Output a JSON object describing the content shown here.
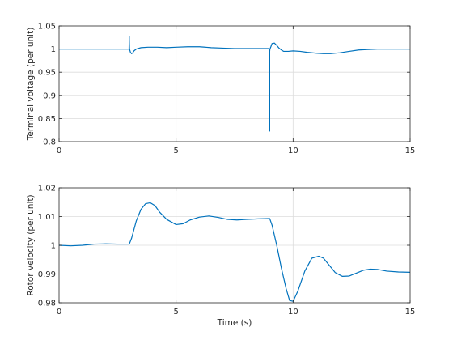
{
  "chart_data": [
    {
      "type": "line",
      "title": "",
      "xlabel": "",
      "ylabel": "Terminal voltage (per unit)",
      "xlim": [
        0,
        15
      ],
      "ylim": [
        0.8,
        1.05
      ],
      "xticks": [
        0,
        5,
        10,
        15
      ],
      "yticks": [
        0.8,
        0.85,
        0.9,
        0.95,
        1,
        1.05
      ],
      "xtick_labels": [
        "0",
        "5",
        "10",
        "15"
      ],
      "ytick_labels": [
        "0.8",
        "0.85",
        "0.9",
        "0.95",
        "1",
        "1.05"
      ],
      "grid": true,
      "color": "#0072BD",
      "series": [
        {
          "x": [
            0,
            2.99,
            3.0,
            3.0,
            3.01,
            3.05,
            3.1,
            3.15,
            3.2,
            3.3,
            3.5,
            3.8,
            4.2,
            4.6,
            5.0,
            5.5,
            6.0,
            6.5,
            7.0,
            7.5,
            8.0,
            8.5,
            8.95,
            8.99,
            9.0,
            9.0,
            9.01,
            9.05,
            9.1,
            9.2,
            9.3,
            9.4,
            9.5,
            9.6,
            9.8,
            10.0,
            10.3,
            10.6,
            11.0,
            11.3,
            11.6,
            12.0,
            12.4,
            12.8,
            13.2,
            13.6,
            14.0,
            14.5,
            15.0
          ],
          "y": [
            1.0,
            1.0,
            1.027,
            1.02,
            1.0,
            0.993,
            0.99,
            0.992,
            0.996,
            1.0,
            1.003,
            1.004,
            1.004,
            1.003,
            1.004,
            1.005,
            1.005,
            1.003,
            1.002,
            1.001,
            1.001,
            1.001,
            1.001,
            1.0,
            0.823,
            0.995,
            1.0,
            1.005,
            1.012,
            1.013,
            1.008,
            1.002,
            0.998,
            0.995,
            0.995,
            0.996,
            0.995,
            0.993,
            0.991,
            0.99,
            0.99,
            0.992,
            0.995,
            0.998,
            0.999,
            1.0,
            1.0,
            1.0,
            1.0
          ]
        }
      ]
    },
    {
      "type": "line",
      "title": "",
      "xlabel": "Time (s)",
      "ylabel": "Rotor velocity (per unit)",
      "xlim": [
        0,
        15
      ],
      "ylim": [
        0.98,
        1.02
      ],
      "xticks": [
        0,
        5,
        10,
        15
      ],
      "yticks": [
        0.98,
        0.99,
        1.0,
        1.01,
        1.02
      ],
      "xtick_labels": [
        "0",
        "5",
        "10",
        "15"
      ],
      "ytick_labels": [
        "0.98",
        "0.99",
        "1",
        "1.01",
        "1.02"
      ],
      "grid": true,
      "color": "#0072BD",
      "series": [
        {
          "x": [
            0,
            0.5,
            1.0,
            1.5,
            2.0,
            2.5,
            3.0,
            3.1,
            3.3,
            3.5,
            3.7,
            3.9,
            4.1,
            4.3,
            4.6,
            5.0,
            5.3,
            5.6,
            6.0,
            6.4,
            6.8,
            7.2,
            7.6,
            8.0,
            8.5,
            9.0,
            9.1,
            9.3,
            9.5,
            9.7,
            9.85,
            10.0,
            10.2,
            10.5,
            10.8,
            11.1,
            11.3,
            11.5,
            11.8,
            12.1,
            12.4,
            12.7,
            13.0,
            13.3,
            13.6,
            14.0,
            14.5,
            15.0
          ],
          "y": [
            1.0,
            0.9998,
            1.0,
            1.0004,
            1.0005,
            1.0004,
            1.0004,
            1.0025,
            1.0085,
            1.0125,
            1.0145,
            1.0148,
            1.0138,
            1.0115,
            1.009,
            1.0072,
            1.0075,
            1.0088,
            1.0098,
            1.0102,
            1.0097,
            1.009,
            1.0088,
            1.009,
            1.0092,
            1.0093,
            1.007,
            1.0,
            0.992,
            0.985,
            0.9808,
            0.9805,
            0.984,
            0.991,
            0.9955,
            0.9962,
            0.9955,
            0.9935,
            0.9905,
            0.9892,
            0.9893,
            0.9903,
            0.9913,
            0.9917,
            0.9916,
            0.991,
            0.9907,
            0.9906
          ]
        }
      ]
    }
  ]
}
